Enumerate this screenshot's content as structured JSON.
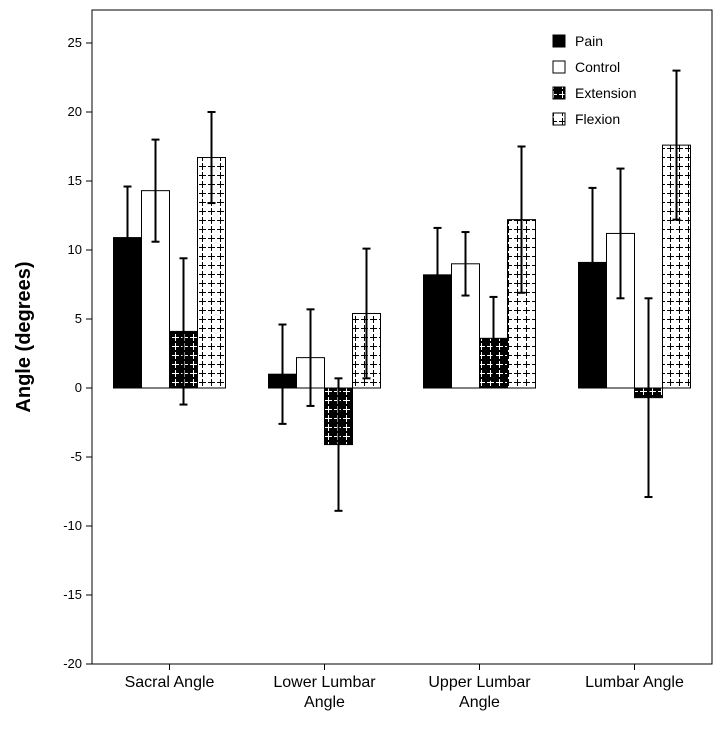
{
  "chart_data": {
    "type": "bar",
    "ylabel": "Angle (degrees)",
    "xlabel": "",
    "ylim": [
      -20,
      27.5
    ],
    "yticks": [
      -20,
      -15,
      -10,
      -5,
      0,
      5,
      10,
      15,
      20,
      25
    ],
    "categories": [
      [
        "Sacral Angle"
      ],
      [
        "Lower Lumbar",
        "Angle"
      ],
      [
        "Upper Lumbar",
        "Angle"
      ],
      [
        "Lumbar Angle"
      ]
    ],
    "series": [
      {
        "name": "Pain",
        "pattern": "solid",
        "values": [
          10.9,
          1.0,
          8.2,
          9.1
        ],
        "errors": [
          3.7,
          3.6,
          3.4,
          5.4
        ]
      },
      {
        "name": "Control",
        "pattern": "white",
        "values": [
          14.3,
          2.2,
          9.0,
          11.2
        ],
        "errors": [
          3.7,
          3.5,
          2.3,
          4.7
        ]
      },
      {
        "name": "Extension",
        "pattern": "dark-cross",
        "values": [
          4.1,
          -4.1,
          3.6,
          -0.7
        ],
        "errors": [
          5.3,
          4.8,
          3.0,
          7.2
        ]
      },
      {
        "name": "Flexion",
        "pattern": "light-cross",
        "values": [
          16.7,
          5.4,
          12.2,
          17.6
        ],
        "errors": [
          3.3,
          4.7,
          5.3,
          5.4
        ]
      }
    ],
    "legend_position": "top-right",
    "grid": false
  }
}
